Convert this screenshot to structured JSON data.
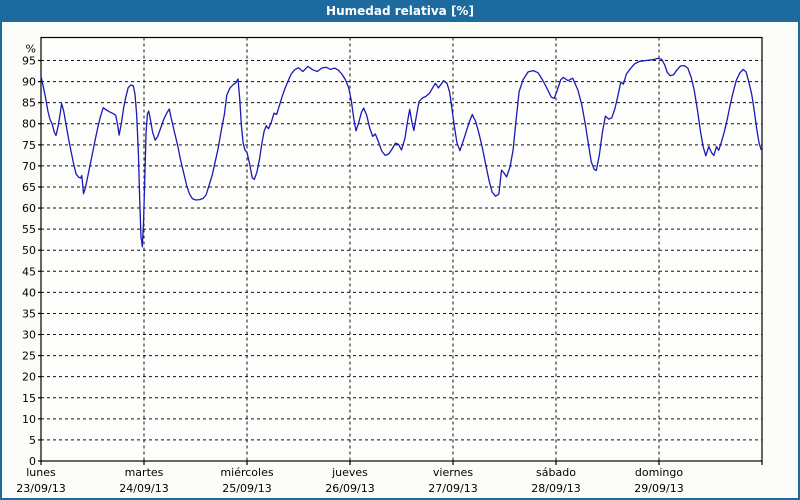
{
  "titlebar": {
    "title": "Humedad relativa [%]"
  },
  "colors": {
    "titlebar_bg": "#1d6a9e",
    "window_border": "#1d6a9e",
    "title_text": "#ffffff",
    "content_bg": "#fcfdf8",
    "plot_bg": "#fefefc",
    "frame": "#000000",
    "grid": "#111111",
    "axis_text": "#000000",
    "line": "#1a1ab4"
  },
  "chart_data": {
    "type": "line",
    "title": "Humedad relativa [%]",
    "ylabel": "%",
    "y_unit_label": "%",
    "ylim": [
      0,
      100
    ],
    "y_tick_min": 0,
    "y_tick_max": 95,
    "y_tick_step": 5,
    "grid": "dashed",
    "legend_position": "none",
    "hours_total": 168,
    "x_days": [
      {
        "name": "lunes",
        "date": "23/09/13"
      },
      {
        "name": "martes",
        "date": "24/09/13"
      },
      {
        "name": "miércoles",
        "date": "25/09/13"
      },
      {
        "name": "jueves",
        "date": "26/09/13"
      },
      {
        "name": "viernes",
        "date": "27/09/13"
      },
      {
        "name": "sábado",
        "date": "28/09/13"
      },
      {
        "name": "domingo",
        "date": "29/09/13"
      }
    ],
    "series": [
      {
        "name": "Humedad relativa [%]",
        "color": "#1a1ab4",
        "points": [
          [
            0,
            91.3
          ],
          [
            0.5,
            89.0
          ],
          [
            1.0,
            86.5
          ],
          [
            1.6,
            83.0
          ],
          [
            2.1,
            81.0
          ],
          [
            2.6,
            79.9
          ],
          [
            3.1,
            78.0
          ],
          [
            3.5,
            77.2
          ],
          [
            4.0,
            79.5
          ],
          [
            4.4,
            82.0
          ],
          [
            4.8,
            84.8
          ],
          [
            5.3,
            83.0
          ],
          [
            5.8,
            80.0
          ],
          [
            6.4,
            76.5
          ],
          [
            7.0,
            73.5
          ],
          [
            7.6,
            70.5
          ],
          [
            8.2,
            68.0
          ],
          [
            8.8,
            67.3
          ],
          [
            9.2,
            67.1
          ],
          [
            9.5,
            67.7
          ],
          [
            9.9,
            63.4
          ],
          [
            10.4,
            65.0
          ],
          [
            11.0,
            68.0
          ],
          [
            11.7,
            71.5
          ],
          [
            12.4,
            75.0
          ],
          [
            13.1,
            78.5
          ],
          [
            13.8,
            81.5
          ],
          [
            14.5,
            83.8
          ],
          [
            15.2,
            83.3
          ],
          [
            16.0,
            82.8
          ],
          [
            16.8,
            82.4
          ],
          [
            17.4,
            82.0
          ],
          [
            17.9,
            79.5
          ],
          [
            18.2,
            77.3
          ],
          [
            18.7,
            80.0
          ],
          [
            19.3,
            84.0
          ],
          [
            19.8,
            86.5
          ],
          [
            20.3,
            88.5
          ],
          [
            20.9,
            89.2
          ],
          [
            21.5,
            89.0
          ],
          [
            21.9,
            87.0
          ],
          [
            22.3,
            82.0
          ],
          [
            22.7,
            73.0
          ],
          [
            23.0,
            62.0
          ],
          [
            23.3,
            53.0
          ],
          [
            23.45,
            52.3
          ],
          [
            23.6,
            50.8
          ],
          [
            23.9,
            57.0
          ],
          [
            24.2,
            68.0
          ],
          [
            24.5,
            78.0
          ],
          [
            24.8,
            82.3
          ],
          [
            25.1,
            83.0
          ],
          [
            25.5,
            81.0
          ],
          [
            26.0,
            78.0
          ],
          [
            26.6,
            76.1
          ],
          [
            27.2,
            77.0
          ],
          [
            27.9,
            79.0
          ],
          [
            28.6,
            81.0
          ],
          [
            29.3,
            82.5
          ],
          [
            29.9,
            83.5
          ],
          [
            30.3,
            81.5
          ],
          [
            31.0,
            78.5
          ],
          [
            31.8,
            75.0
          ],
          [
            32.5,
            71.5
          ],
          [
            33.2,
            68.5
          ],
          [
            33.9,
            65.5
          ],
          [
            34.6,
            63.3
          ],
          [
            35.3,
            62.2
          ],
          [
            36.1,
            61.9
          ],
          [
            37.0,
            62.0
          ],
          [
            37.8,
            62.3
          ],
          [
            38.5,
            63.2
          ],
          [
            39.2,
            65.5
          ],
          [
            39.9,
            67.8
          ],
          [
            40.6,
            71.0
          ],
          [
            41.3,
            74.2
          ],
          [
            42.0,
            78.5
          ],
          [
            42.7,
            82.1
          ],
          [
            43.3,
            86.8
          ],
          [
            44.0,
            88.4
          ],
          [
            44.7,
            89.2
          ],
          [
            45.4,
            89.7
          ],
          [
            45.9,
            90.6
          ],
          [
            46.3,
            86.0
          ],
          [
            46.7,
            79.5
          ],
          [
            47.1,
            75.5
          ],
          [
            47.5,
            73.8
          ],
          [
            48.0,
            73.2
          ],
          [
            48.6,
            70.5
          ],
          [
            49.2,
            67.2
          ],
          [
            49.7,
            66.8
          ],
          [
            50.3,
            68.5
          ],
          [
            50.9,
            71.5
          ],
          [
            51.5,
            75.5
          ],
          [
            52.0,
            78.3
          ],
          [
            52.5,
            79.5
          ],
          [
            53.0,
            78.8
          ],
          [
            53.7,
            80.5
          ],
          [
            54.3,
            82.5
          ],
          [
            54.9,
            82.2
          ],
          [
            55.6,
            84.5
          ],
          [
            56.2,
            86.5
          ],
          [
            56.9,
            88.5
          ],
          [
            57.6,
            90.2
          ],
          [
            58.3,
            91.8
          ],
          [
            59.1,
            92.8
          ],
          [
            60.0,
            93.3
          ],
          [
            61.0,
            92.4
          ],
          [
            62.2,
            93.6
          ],
          [
            63.3,
            92.8
          ],
          [
            64.4,
            92.4
          ],
          [
            65.4,
            93.2
          ],
          [
            66.4,
            93.4
          ],
          [
            67.4,
            92.9
          ],
          [
            68.4,
            93.2
          ],
          [
            69.3,
            92.7
          ],
          [
            70.1,
            91.8
          ],
          [
            70.9,
            90.5
          ],
          [
            71.7,
            88.5
          ],
          [
            72.3,
            85.5
          ],
          [
            72.9,
            81.0
          ],
          [
            73.4,
            78.3
          ],
          [
            74.0,
            80.2
          ],
          [
            74.7,
            82.8
          ],
          [
            75.2,
            83.7
          ],
          [
            75.9,
            82.0
          ],
          [
            76.6,
            79.0
          ],
          [
            77.3,
            77.0
          ],
          [
            77.9,
            77.6
          ],
          [
            78.6,
            75.8
          ],
          [
            79.4,
            73.5
          ],
          [
            80.2,
            72.5
          ],
          [
            81.0,
            72.8
          ],
          [
            81.8,
            74.0
          ],
          [
            82.6,
            75.4
          ],
          [
            83.3,
            75.1
          ],
          [
            84.0,
            73.8
          ],
          [
            84.8,
            76.5
          ],
          [
            85.4,
            80.5
          ],
          [
            85.9,
            83.4
          ],
          [
            86.4,
            80.5
          ],
          [
            86.9,
            78.4
          ],
          [
            87.5,
            82.0
          ],
          [
            88.1,
            85.3
          ],
          [
            88.9,
            86.1
          ],
          [
            89.7,
            86.5
          ],
          [
            90.5,
            87.2
          ],
          [
            91.2,
            88.4
          ],
          [
            91.9,
            89.6
          ],
          [
            92.6,
            88.5
          ],
          [
            93.8,
            90.2
          ],
          [
            94.6,
            89.6
          ],
          [
            95.2,
            87.5
          ],
          [
            95.7,
            84.0
          ],
          [
            96.3,
            79.5
          ],
          [
            96.9,
            75.5
          ],
          [
            97.6,
            73.6
          ],
          [
            98.3,
            75.7
          ],
          [
            99.1,
            78.2
          ],
          [
            99.9,
            80.7
          ],
          [
            100.5,
            82.2
          ],
          [
            101.3,
            80.5
          ],
          [
            102.1,
            77.5
          ],
          [
            102.9,
            74.0
          ],
          [
            103.7,
            70.0
          ],
          [
            104.4,
            66.5
          ],
          [
            105.1,
            63.8
          ],
          [
            105.9,
            62.8
          ],
          [
            106.7,
            63.3
          ],
          [
            107.3,
            69.0
          ],
          [
            107.9,
            68.3
          ],
          [
            108.5,
            67.4
          ],
          [
            109.3,
            69.8
          ],
          [
            110.0,
            73.8
          ],
          [
            110.7,
            80.9
          ],
          [
            111.4,
            87.6
          ],
          [
            112.3,
            90.4
          ],
          [
            113.5,
            92.3
          ],
          [
            114.7,
            92.6
          ],
          [
            115.8,
            92.1
          ],
          [
            116.8,
            90.5
          ],
          [
            117.7,
            88.8
          ],
          [
            118.9,
            86.3
          ],
          [
            119.6,
            86.0
          ],
          [
            120.3,
            88.0
          ],
          [
            121.1,
            90.4
          ],
          [
            121.7,
            91.0
          ],
          [
            122.8,
            90.2
          ],
          [
            123.9,
            90.8
          ],
          [
            125.1,
            88.0
          ],
          [
            126.0,
            84.5
          ],
          [
            126.8,
            80.0
          ],
          [
            127.5,
            75.5
          ],
          [
            128.2,
            71.0
          ],
          [
            128.9,
            69.2
          ],
          [
            129.4,
            68.9
          ],
          [
            130.1,
            72.5
          ],
          [
            130.8,
            78.0
          ],
          [
            131.5,
            81.8
          ],
          [
            132.3,
            81.1
          ],
          [
            133.0,
            81.4
          ],
          [
            133.7,
            83.5
          ],
          [
            134.4,
            86.5
          ],
          [
            135.1,
            89.9
          ],
          [
            135.7,
            89.4
          ],
          [
            136.4,
            91.8
          ],
          [
            137.3,
            93.0
          ],
          [
            138.3,
            94.2
          ],
          [
            139.5,
            94.8
          ],
          [
            141.0,
            95.0
          ],
          [
            142.5,
            95.2
          ],
          [
            143.8,
            95.5
          ],
          [
            144.6,
            95.3
          ],
          [
            145.3,
            94.0
          ],
          [
            145.9,
            92.2
          ],
          [
            146.6,
            91.4
          ],
          [
            147.4,
            91.6
          ],
          [
            148.2,
            92.8
          ],
          [
            149.0,
            93.7
          ],
          [
            149.9,
            93.8
          ],
          [
            150.7,
            93.2
          ],
          [
            151.5,
            91.0
          ],
          [
            152.2,
            88.0
          ],
          [
            153.0,
            83.0
          ],
          [
            153.7,
            78.0
          ],
          [
            154.3,
            74.5
          ],
          [
            154.9,
            72.4
          ],
          [
            155.6,
            74.6
          ],
          [
            156.2,
            73.2
          ],
          [
            156.8,
            72.5
          ],
          [
            157.4,
            74.6
          ],
          [
            157.9,
            73.7
          ],
          [
            158.5,
            75.5
          ],
          [
            159.2,
            78.0
          ],
          [
            159.9,
            81.0
          ],
          [
            160.6,
            84.5
          ],
          [
            161.3,
            87.5
          ],
          [
            162.0,
            90.3
          ],
          [
            162.8,
            92.0
          ],
          [
            163.6,
            92.9
          ],
          [
            164.3,
            92.3
          ],
          [
            164.9,
            90.0
          ],
          [
            165.6,
            87.0
          ],
          [
            166.2,
            83.0
          ],
          [
            166.8,
            78.5
          ],
          [
            167.3,
            75.5
          ],
          [
            167.8,
            73.9
          ]
        ]
      }
    ]
  }
}
